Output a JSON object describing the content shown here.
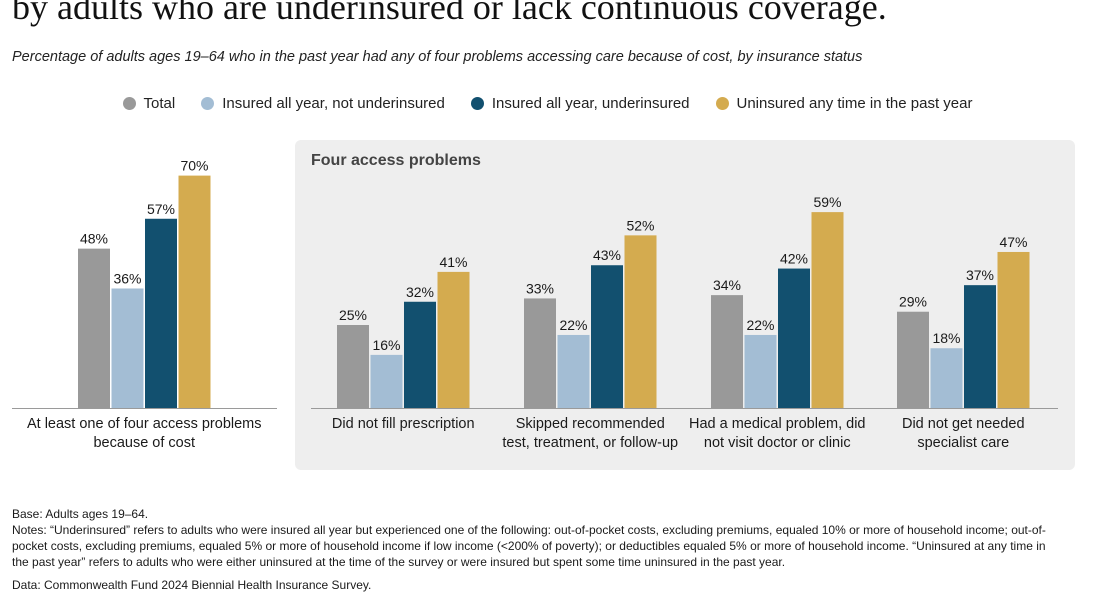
{
  "title": "by adults who are underinsured or lack continuous coverage.",
  "subtitle": "Percentage of adults ages 19–64 who in the past year had any of four problems accessing care because of cost, by insurance status",
  "panel_title": "Four access problems",
  "legend": [
    {
      "label": "Total",
      "color": "#999999"
    },
    {
      "label": "Insured all year, not underinsured",
      "color": "#a3bdd4"
    },
    {
      "label": "Insured all year, underinsured",
      "color": "#12506f"
    },
    {
      "label": "Uninsured any time in the past year",
      "color": "#d4ab4f"
    }
  ],
  "chart_data": {
    "type": "bar",
    "value_suffix": "%",
    "ylim": [
      0,
      100
    ],
    "grid": false,
    "legend_position": "top",
    "categories": [
      [
        "At least one of four access problems",
        "because of cost"
      ],
      [
        "Did not fill prescription"
      ],
      [
        "Skipped recommended",
        "test, treatment, or follow-up"
      ],
      [
        "Had a medical problem, did",
        "not visit doctor or clinic"
      ],
      [
        "Did not get needed",
        "specialist care"
      ]
    ],
    "series": [
      {
        "name": "Total",
        "color": "#999999",
        "values": [
          48,
          25,
          33,
          34,
          29
        ]
      },
      {
        "name": "Insured all year, not underinsured",
        "color": "#a3bdd4",
        "values": [
          36,
          16,
          22,
          22,
          18
        ]
      },
      {
        "name": "Insured all year, underinsured",
        "color": "#12506f",
        "values": [
          57,
          32,
          43,
          42,
          37
        ]
      },
      {
        "name": "Uninsured any time in the past year",
        "color": "#d4ab4f",
        "values": [
          70,
          41,
          52,
          59,
          47
        ]
      }
    ]
  },
  "footnotes": {
    "base": "Base: Adults ages 19–64.",
    "notes": "Notes: “Underinsured” refers to adults who were insured all year but experienced one of the following: out-of-pocket costs, excluding premiums, equaled 10% or more of household income; out-of-pocket costs, excluding premiums, equaled 5% or more of household income if low income (<200% of poverty); or deductibles equaled 5% or more of household income. “Uninsured at any time in the past year” refers to adults who were either uninsured at the time of the survey or were insured but spent some time uninsured in the past year.",
    "data": "Data: Commonwealth Fund 2024 Biennial Health Insurance Survey."
  }
}
